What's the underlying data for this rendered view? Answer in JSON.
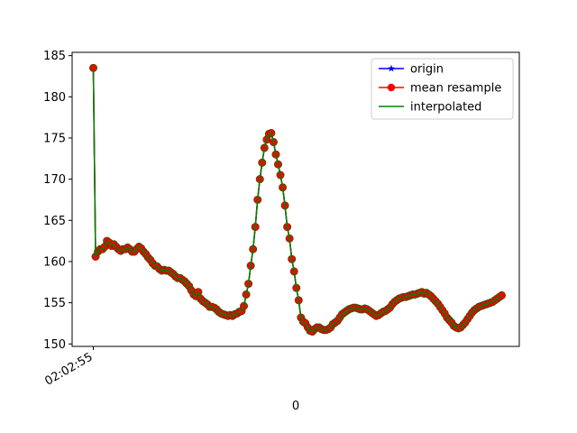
{
  "chart_data": {
    "type": "line",
    "xlabel": "0",
    "ylabel": "",
    "title": "",
    "x_tick_labels": [
      "02:02:55"
    ],
    "ylim": [
      149.7,
      185.4
    ],
    "y_ticks": [
      150,
      155,
      160,
      165,
      170,
      175,
      180,
      185
    ],
    "grid": false,
    "legend_position": "top-right",
    "colors": {
      "origin": "#0000ff",
      "mean_resample": "#ff0000",
      "interpolated": "#008000"
    },
    "x": [
      0,
      1,
      2,
      3,
      4,
      5,
      6,
      7,
      8,
      9,
      10,
      11,
      12,
      13,
      14,
      15,
      16,
      17,
      18,
      19,
      20,
      21,
      22,
      23,
      24,
      25,
      26,
      27,
      28,
      29,
      30,
      31,
      32,
      33,
      34,
      35,
      36,
      37,
      38,
      39,
      40,
      41,
      42,
      43,
      44,
      45,
      46,
      47,
      48,
      49,
      50,
      51,
      52,
      53,
      54,
      55,
      56,
      57,
      58,
      59,
      60,
      61,
      62,
      63,
      64,
      65,
      66,
      67,
      68,
      69,
      70,
      71,
      72,
      73,
      74,
      75,
      76,
      77,
      78,
      79,
      80,
      81,
      82,
      83,
      84,
      85,
      86,
      87,
      88,
      89,
      90,
      91,
      92,
      93,
      94,
      95,
      96,
      97,
      98,
      99,
      100,
      101,
      102,
      103,
      104,
      105,
      106,
      107,
      108,
      109,
      110,
      111,
      112,
      113,
      114,
      115,
      116,
      117,
      118,
      119,
      120,
      121,
      122,
      123,
      124,
      125,
      126,
      127,
      128,
      129,
      130,
      131,
      132,
      133,
      134,
      135,
      136,
      137,
      138,
      139,
      140,
      141,
      142,
      143,
      144,
      145,
      146,
      147,
      148,
      149,
      150,
      151,
      152,
      153,
      154,
      155,
      156,
      157,
      158,
      159,
      160,
      161,
      162,
      163,
      164,
      165,
      166,
      167,
      168,
      169,
      170,
      171,
      172,
      173,
      174,
      175,
      176,
      177,
      178,
      179
    ],
    "series": [
      {
        "name": "origin",
        "marker": "star",
        "values": [
          183.5,
          160.6,
          161.2,
          161.5,
          161.5,
          161.8,
          162.5,
          162.3,
          161.9,
          162.1,
          161.8,
          161.5,
          161.3,
          161.5,
          161.5,
          161.7,
          161.5,
          161.2,
          161.2,
          161.5,
          161.8,
          161.6,
          161.2,
          160.9,
          160.5,
          160.2,
          159.8,
          159.5,
          159.4,
          159.1,
          158.9,
          159.0,
          158.9,
          158.9,
          158.7,
          158.5,
          158.2,
          158.0,
          158.0,
          157.8,
          157.6,
          157.3,
          157.0,
          156.5,
          156.0,
          155.8,
          156.3,
          155.5,
          155.2,
          155.0,
          154.8,
          154.5,
          154.5,
          154.4,
          154.2,
          153.9,
          153.7,
          153.6,
          153.5,
          153.4,
          153.5,
          153.4,
          153.6,
          153.7,
          153.9,
          154.0,
          154.6,
          156.0,
          157.3,
          159.5,
          161.5,
          164.2,
          167.5,
          170.0,
          172.0,
          173.8,
          174.8,
          175.5,
          175.6,
          174.5,
          173.0,
          171.8,
          170.5,
          169.0,
          166.8,
          164.2,
          162.8,
          160.3,
          158.8,
          156.8,
          155.3,
          153.2,
          152.7,
          152.5,
          152.0,
          151.6,
          151.5,
          151.8,
          152.0,
          152.0,
          151.8,
          151.7,
          151.7,
          151.8,
          152.0,
          152.4,
          152.6,
          152.8,
          153.2,
          153.6,
          153.8,
          154.0,
          154.2,
          154.3,
          154.4,
          154.4,
          154.3,
          154.2,
          154.2,
          154.3,
          154.2,
          154.0,
          153.8,
          153.6,
          153.4,
          153.5,
          153.7,
          153.9,
          154.0,
          154.2,
          154.4,
          154.8,
          155.1,
          155.3,
          155.5,
          155.6,
          155.7,
          155.7,
          155.8,
          155.9,
          156.0,
          156.0,
          156.1,
          156.2,
          156.3,
          156.1,
          156.2,
          156.0,
          155.8,
          155.5,
          155.2,
          154.9,
          154.5,
          154.1,
          153.7,
          153.2,
          152.9,
          152.6,
          152.2,
          152.0,
          151.9,
          152.0,
          152.3,
          152.6,
          153.0,
          153.4,
          153.8,
          154.1,
          154.3,
          154.5,
          154.6,
          154.7,
          154.8,
          154.9,
          155.0,
          155.1,
          155.3,
          155.5,
          155.7,
          155.9
        ]
      },
      {
        "name": "mean resample",
        "marker": "circle",
        "values": [
          183.5,
          160.6,
          161.2,
          161.5,
          161.5,
          161.8,
          162.5,
          162.3,
          161.9,
          162.1,
          161.8,
          161.5,
          161.3,
          161.5,
          161.5,
          161.7,
          161.5,
          161.2,
          161.2,
          161.5,
          161.8,
          161.6,
          161.2,
          160.9,
          160.5,
          160.2,
          159.8,
          159.5,
          159.4,
          159.1,
          158.9,
          159.0,
          158.9,
          158.9,
          158.7,
          158.5,
          158.2,
          158.0,
          158.0,
          157.8,
          157.6,
          157.3,
          157.0,
          156.5,
          156.0,
          155.8,
          156.3,
          155.5,
          155.2,
          155.0,
          154.8,
          154.5,
          154.5,
          154.4,
          154.2,
          153.9,
          153.7,
          153.6,
          153.5,
          153.4,
          153.5,
          153.4,
          153.6,
          153.7,
          153.9,
          154.0,
          154.6,
          156.0,
          157.3,
          159.5,
          161.5,
          164.2,
          167.5,
          170.0,
          172.0,
          173.8,
          174.8,
          175.5,
          175.6,
          174.5,
          173.0,
          171.8,
          170.5,
          169.0,
          166.8,
          164.2,
          162.8,
          160.3,
          158.8,
          156.8,
          155.3,
          153.2,
          152.7,
          152.5,
          152.0,
          151.6,
          151.5,
          151.8,
          152.0,
          152.0,
          151.8,
          151.7,
          151.7,
          151.8,
          152.0,
          152.4,
          152.6,
          152.8,
          153.2,
          153.6,
          153.8,
          154.0,
          154.2,
          154.3,
          154.4,
          154.4,
          154.3,
          154.2,
          154.2,
          154.3,
          154.2,
          154.0,
          153.8,
          153.6,
          153.4,
          153.5,
          153.7,
          153.9,
          154.0,
          154.2,
          154.4,
          154.8,
          155.1,
          155.3,
          155.5,
          155.6,
          155.7,
          155.7,
          155.8,
          155.9,
          156.0,
          156.0,
          156.1,
          156.2,
          156.3,
          156.1,
          156.2,
          156.0,
          155.8,
          155.5,
          155.2,
          154.9,
          154.5,
          154.1,
          153.7,
          153.2,
          152.9,
          152.6,
          152.2,
          152.0,
          151.9,
          152.0,
          152.3,
          152.6,
          153.0,
          153.4,
          153.8,
          154.1,
          154.3,
          154.5,
          154.6,
          154.7,
          154.8,
          154.9,
          155.0,
          155.1,
          155.3,
          155.5,
          155.7,
          155.9
        ]
      },
      {
        "name": "interpolated",
        "marker": "none",
        "values": [
          183.5,
          160.6,
          161.2,
          161.5,
          161.5,
          161.8,
          162.5,
          162.3,
          161.9,
          162.1,
          161.8,
          161.5,
          161.3,
          161.5,
          161.5,
          161.7,
          161.5,
          161.2,
          161.2,
          161.5,
          161.8,
          161.6,
          161.2,
          160.9,
          160.5,
          160.2,
          159.8,
          159.5,
          159.4,
          159.1,
          158.9,
          159.0,
          158.9,
          158.9,
          158.7,
          158.5,
          158.2,
          158.0,
          158.0,
          157.8,
          157.6,
          157.3,
          157.0,
          156.5,
          156.0,
          155.8,
          156.3,
          155.5,
          155.2,
          155.0,
          154.8,
          154.5,
          154.5,
          154.4,
          154.2,
          153.9,
          153.7,
          153.6,
          153.5,
          153.4,
          153.5,
          153.4,
          153.6,
          153.7,
          153.9,
          154.0,
          154.6,
          156.0,
          157.3,
          159.5,
          161.5,
          164.2,
          167.5,
          170.0,
          172.0,
          173.8,
          174.8,
          175.5,
          175.6,
          174.5,
          173.0,
          171.8,
          170.5,
          169.0,
          166.8,
          164.2,
          162.8,
          160.3,
          158.8,
          156.8,
          155.3,
          153.2,
          152.7,
          152.5,
          152.0,
          151.6,
          151.5,
          151.8,
          152.0,
          152.0,
          151.8,
          151.7,
          151.7,
          151.8,
          152.0,
          152.4,
          152.6,
          152.8,
          153.2,
          153.6,
          153.8,
          154.0,
          154.2,
          154.3,
          154.4,
          154.4,
          154.3,
          154.2,
          154.2,
          154.3,
          154.2,
          154.0,
          153.8,
          153.6,
          153.4,
          153.5,
          153.7,
          153.9,
          154.0,
          154.2,
          154.4,
          154.8,
          155.1,
          155.3,
          155.5,
          155.6,
          155.7,
          155.7,
          155.8,
          155.9,
          156.0,
          156.0,
          156.1,
          156.2,
          156.3,
          156.1,
          156.2,
          156.0,
          155.8,
          155.5,
          155.2,
          154.9,
          154.5,
          154.1,
          153.7,
          153.2,
          152.9,
          152.6,
          152.2,
          152.0,
          151.9,
          152.0,
          152.3,
          152.6,
          153.0,
          153.4,
          153.8,
          154.1,
          154.3,
          154.5,
          154.6,
          154.7,
          154.8,
          154.9,
          155.0,
          155.1,
          155.3,
          155.5,
          155.7,
          155.9
        ]
      }
    ]
  }
}
